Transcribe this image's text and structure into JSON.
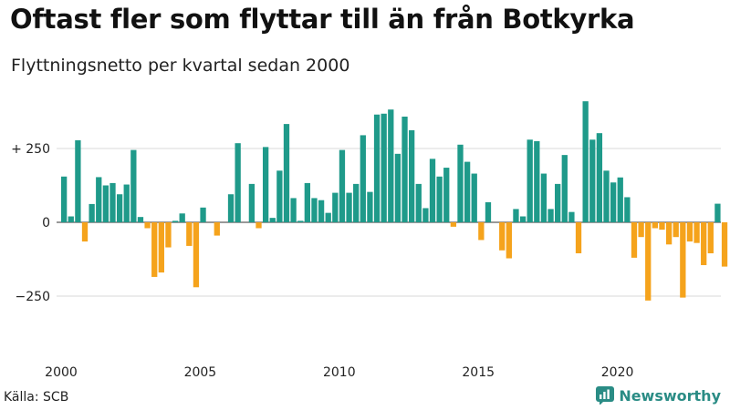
{
  "header": {
    "title": "Oftast fler som flyttar till än från Botkyrka",
    "subtitle": "Flyttningsnetto per kvartal sedan 2000"
  },
  "footer": {
    "source": "Källa: SCB",
    "brand": "Newsworthy"
  },
  "colors": {
    "positive": "#1f9a8a",
    "negative": "#f5a31c",
    "grid": "#d9d9d9",
    "brand": "#2a8c85"
  },
  "chart_data": {
    "type": "bar",
    "title": "Oftast fler som flyttar till än från Botkyrka",
    "subtitle": "Flyttningsnetto per kvartal sedan 2000",
    "xlabel": "",
    "ylabel": "",
    "ylim": [
      -420,
      440
    ],
    "yticks": [
      {
        "value": 250,
        "label": "+ 250"
      },
      {
        "value": 0,
        "label": "0"
      },
      {
        "value": -250,
        "label": "−250"
      }
    ],
    "xticks": [
      {
        "year": 2000,
        "label": "2000"
      },
      {
        "year": 2005,
        "label": "2005"
      },
      {
        "year": 2010,
        "label": "2010"
      },
      {
        "year": 2015,
        "label": "2015"
      },
      {
        "year": 2020,
        "label": "2020"
      }
    ],
    "start_year": 2000,
    "period": "quarter",
    "grid": true,
    "values": [
      155,
      20,
      278,
      -65,
      62,
      153,
      125,
      133,
      95,
      128,
      245,
      18,
      -20,
      -185,
      -170,
      -85,
      5,
      30,
      -80,
      -220,
      50,
      0,
      -45,
      0,
      95,
      268,
      0,
      130,
      -20,
      255,
      15,
      175,
      333,
      82,
      5,
      133,
      82,
      75,
      32,
      100,
      245,
      100,
      130,
      295,
      103,
      365,
      368,
      382,
      232,
      358,
      312,
      130,
      48,
      215,
      155,
      185,
      -15,
      263,
      205,
      165,
      -60,
      68,
      0,
      -95,
      -122,
      45,
      20,
      280,
      275,
      165,
      45,
      130,
      228,
      35,
      -105,
      410,
      280,
      302,
      175,
      135,
      152,
      85,
      -120,
      -50,
      -265,
      -20,
      -25,
      -75,
      -50,
      -255,
      -65,
      -70,
      -145,
      -105,
      63,
      -150
    ]
  }
}
